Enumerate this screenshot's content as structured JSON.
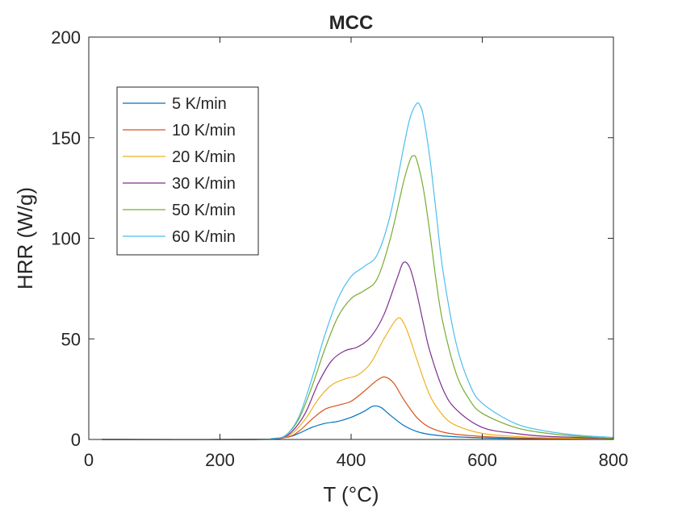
{
  "chart_data": {
    "type": "line",
    "title": "MCC",
    "xlabel": "T (°C)",
    "ylabel": "HRR (W/g)",
    "xlim": [
      0,
      800
    ],
    "ylim": [
      0,
      200
    ],
    "xticks": [
      0,
      200,
      400,
      600,
      800
    ],
    "yticks": [
      0,
      50,
      100,
      150,
      200
    ],
    "xtick_labels": [
      "0",
      "200",
      "400",
      "600",
      "800"
    ],
    "ytick_labels": [
      "0",
      "50",
      "100",
      "150",
      "200"
    ],
    "grid": false,
    "box": true,
    "legend_position": "top-left",
    "series": [
      {
        "name": "5 K/min",
        "color": "#0072BD",
        "x": [
          20,
          250,
          300,
          320,
          340,
          360,
          380,
          400,
          420,
          433,
          445,
          460,
          480,
          500,
          520,
          550,
          600,
          650,
          700,
          800
        ],
        "y": [
          0,
          0,
          1,
          3,
          6,
          8,
          9,
          11,
          14,
          16.5,
          16,
          12,
          7,
          4,
          2.5,
          1.5,
          0.8,
          0.5,
          0.3,
          0.1
        ]
      },
      {
        "name": "10 K/min",
        "color": "#D95319",
        "x": [
          20,
          250,
          300,
          320,
          340,
          360,
          380,
          400,
          420,
          440,
          452,
          465,
          480,
          500,
          520,
          550,
          600,
          650,
          700,
          800
        ],
        "y": [
          0,
          0,
          1,
          4,
          10,
          15,
          17,
          19,
          24,
          29.5,
          31,
          28,
          20,
          11,
          6,
          3,
          1.5,
          0.8,
          0.5,
          0.2
        ]
      },
      {
        "name": "20 K/min",
        "color": "#EDB120",
        "x": [
          20,
          250,
          290,
          310,
          330,
          350,
          370,
          390,
          410,
          430,
          450,
          470,
          480,
          490,
          500,
          520,
          540,
          560,
          600,
          650,
          700,
          800
        ],
        "y": [
          0,
          0,
          0.5,
          3,
          10,
          20,
          27,
          30,
          32,
          38,
          50,
          60,
          58,
          50,
          40,
          22,
          12,
          7,
          3,
          1.5,
          0.8,
          0.3
        ]
      },
      {
        "name": "30 K/min",
        "color": "#7E2F8E",
        "x": [
          20,
          250,
          290,
          310,
          330,
          350,
          370,
          390,
          410,
          430,
          450,
          470,
          480,
          490,
          500,
          510,
          520,
          540,
          560,
          600,
          650,
          700,
          800
        ],
        "y": [
          0,
          0,
          0.5,
          4,
          13,
          28,
          39,
          44,
          46,
          51,
          62,
          80,
          88,
          85,
          73,
          58,
          44,
          25,
          15,
          6,
          3,
          1.5,
          0.5
        ]
      },
      {
        "name": "50 K/min",
        "color": "#77AC30",
        "x": [
          20,
          250,
          280,
          300,
          320,
          340,
          360,
          380,
          400,
          420,
          440,
          460,
          480,
          490,
          495,
          500,
          510,
          520,
          530,
          540,
          560,
          580,
          600,
          650,
          700,
          750,
          800
        ],
        "y": [
          0,
          0,
          0.5,
          2,
          10,
          26,
          45,
          61,
          70,
          74,
          80,
          100,
          128,
          139,
          141,
          139,
          125,
          103,
          78,
          58,
          33,
          20,
          13,
          6,
          3,
          1.5,
          0.5
        ]
      },
      {
        "name": "60 K/min",
        "color": "#4DBEEE",
        "x": [
          20,
          250,
          280,
          300,
          320,
          340,
          360,
          380,
          400,
          420,
          440,
          460,
          480,
          490,
          500,
          505,
          510,
          520,
          530,
          540,
          560,
          580,
          600,
          650,
          700,
          750,
          800
        ],
        "y": [
          0,
          0,
          0.5,
          2,
          11,
          30,
          52,
          70,
          81,
          86,
          92,
          112,
          145,
          160,
          167,
          166,
          161,
          140,
          112,
          84,
          48,
          28,
          18,
          8,
          4,
          2,
          1
        ]
      }
    ]
  }
}
